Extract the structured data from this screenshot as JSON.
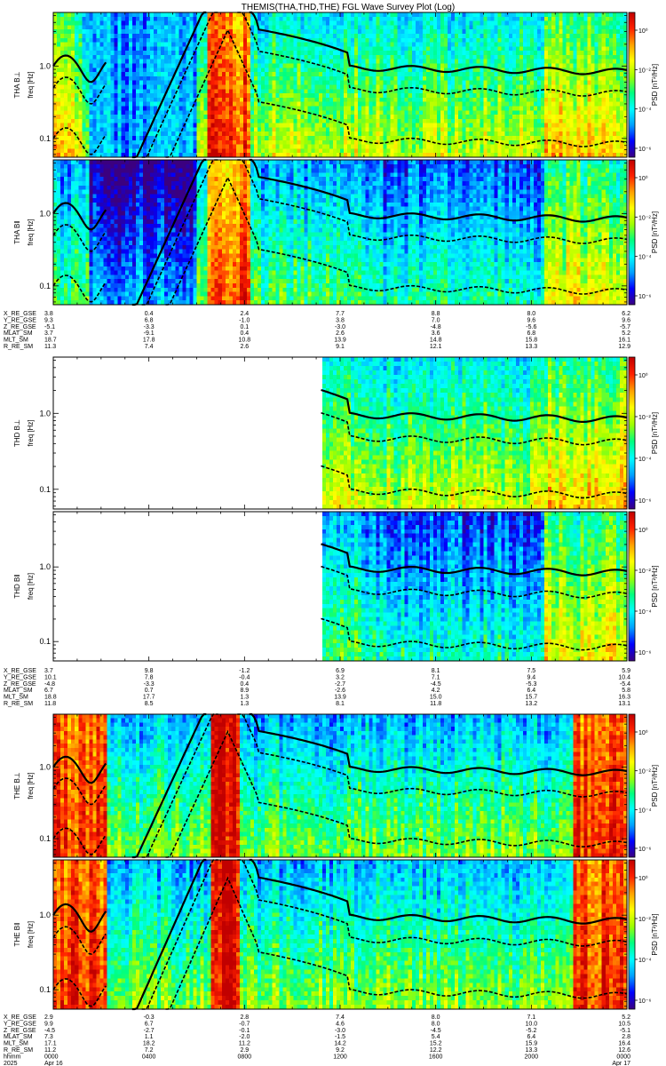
{
  "title": "THEMIS(THA,THD,THE) FGL Wave Survey Plot (Log)",
  "colorbar": {
    "label": "PSD [nT²/Hz]",
    "ticks": [
      "10⁰",
      "10⁻²",
      "10⁻⁴",
      "10⁻⁶"
    ],
    "colormap": [
      "#3b0080",
      "#0000ff",
      "#00a0ff",
      "#00ffff",
      "#00ff80",
      "#a0ff00",
      "#ffff00",
      "#ffa000",
      "#ff2000",
      "#c00000"
    ]
  },
  "chart_data": [
    {
      "type": "heatmap",
      "probe": "THA",
      "panels": [
        {
          "name": "THA B⊥",
          "ylabel": "freq [Hz]",
          "yscale": "log",
          "ytick_labels": [
            "1.0",
            "0.1"
          ],
          "background": "mixed",
          "data_start_hour": 0
        },
        {
          "name": "THA B‖",
          "ylabel": "freq [Hz]",
          "yscale": "log",
          "ytick_labels": [
            "1.0",
            "0.1"
          ],
          "background": "blue",
          "data_start_hour": 0
        }
      ],
      "ephemeris": {
        "rows": [
          "X_RE_GSE",
          "Y_RE_GSE",
          "Z_RE_GSE",
          "MLAT_SM",
          "MLT_SM",
          "R_RE_SM"
        ],
        "hours": [
          0,
          4,
          8,
          12,
          16,
          20,
          24
        ],
        "values": [
          [
            "3.8",
            "0.4",
            "2.4",
            "7.7",
            "8.8",
            "8.0",
            "6.2"
          ],
          [
            "9.3",
            "6.8",
            "-1.0",
            "3.8",
            "7.0",
            "9.6",
            "9.6"
          ],
          [
            "-5.1",
            "-3.3",
            "0.1",
            "-3.0",
            "-4.8",
            "-5.6",
            "-5.7"
          ],
          [
            "3.7",
            "-9.1",
            "0.4",
            "2.6",
            "3.6",
            "6.8",
            "5.2"
          ],
          [
            "18.7",
            "17.8",
            "10.8",
            "13.9",
            "14.8",
            "15.8",
            "16.1"
          ],
          [
            "11.3",
            "7.4",
            "2.6",
            "9.1",
            "12.1",
            "13.3",
            "12.9"
          ]
        ]
      }
    },
    {
      "type": "heatmap",
      "probe": "THD",
      "panels": [
        {
          "name": "THD B⊥",
          "ylabel": "freq [Hz]",
          "yscale": "log",
          "ytick_labels": [
            "1.0",
            "0.1"
          ],
          "background": "mixed",
          "data_start_hour": 11.2
        },
        {
          "name": "THD B‖",
          "ylabel": "freq [Hz]",
          "yscale": "log",
          "ytick_labels": [
            "1.0",
            "0.1"
          ],
          "background": "blue",
          "data_start_hour": 11.2
        }
      ],
      "ephemeris": {
        "rows": [
          "X_RE_GSE",
          "Y_RE_GSE",
          "Z_RE_GSE",
          "MLAT_SM",
          "MLT_SM",
          "R_RE_SM"
        ],
        "hours": [
          0,
          4,
          8,
          12,
          16,
          20,
          24
        ],
        "values": [
          [
            "3.7",
            "9.8",
            "-1.2",
            "6.9",
            "8.1",
            "7.5",
            "5.9"
          ],
          [
            "10.1",
            "7.8",
            "-0.4",
            "3.2",
            "7.1",
            "9.4",
            "10.4"
          ],
          [
            "-4.8",
            "-3.3",
            "0.4",
            "-2.7",
            "-4.5",
            "-5.3",
            "-5.4"
          ],
          [
            "6.7",
            "0.7",
            "8.9",
            "-2.6",
            "4.2",
            "6.4",
            "5.8"
          ],
          [
            "18.8",
            "17.7",
            "1.3",
            "13.9",
            "15.0",
            "15.7",
            "16.3"
          ],
          [
            "11.8",
            "8.5",
            "1.3",
            "8.1",
            "11.8",
            "13.2",
            "13.1"
          ]
        ]
      }
    },
    {
      "type": "heatmap",
      "probe": "THE",
      "panels": [
        {
          "name": "THE B⊥",
          "ylabel": "freq [Hz]",
          "yscale": "log",
          "ytick_labels": [
            "1.0",
            "0.1"
          ],
          "background": "red",
          "data_start_hour": 0
        },
        {
          "name": "THE B‖",
          "ylabel": "freq [Hz]",
          "yscale": "log",
          "ytick_labels": [
            "1.0",
            "0.1"
          ],
          "background": "red",
          "data_start_hour": 0
        }
      ],
      "ephemeris": {
        "rows": [
          "X_RE_GSE",
          "Y_RE_GSE",
          "Z_RE_GSE",
          "MLAT_SM",
          "MLT_SM",
          "R_RE_SM",
          "hhmm",
          "2025"
        ],
        "hours": [
          0,
          4,
          8,
          12,
          16,
          20,
          24
        ],
        "values": [
          [
            "2.9",
            "-0.3",
            "2.8",
            "7.4",
            "8.0",
            "7.1",
            "5.2"
          ],
          [
            "9.9",
            "6.7",
            "-0.7",
            "4.6",
            "8.0",
            "10.0",
            "10.5"
          ],
          [
            "-4.5",
            "-2.7",
            "-0.1",
            "-3.0",
            "-4.5",
            "-5.2",
            "-5.1"
          ],
          [
            "7.3",
            "1.1",
            "-2.0",
            "-1.5",
            "5.4",
            "6.4",
            "2.8"
          ],
          [
            "17.1",
            "18.2",
            "11.2",
            "14.2",
            "15.2",
            "15.9",
            "16.4"
          ],
          [
            "11.2",
            "7.2",
            "2.9",
            "9.2",
            "12.2",
            "13.3",
            "12.6"
          ],
          [
            "0000",
            "0400",
            "0800",
            "1200",
            "1600",
            "2000",
            "0000"
          ],
          [
            "Apr 16",
            "",
            "",
            "",
            "",
            "",
            "Apr 17"
          ]
        ]
      }
    }
  ]
}
